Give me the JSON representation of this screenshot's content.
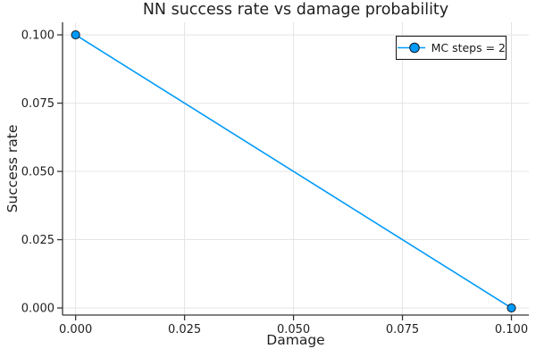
{
  "chart_data": {
    "type": "line",
    "title": "NN success rate vs damage probability",
    "xlabel": "Damage",
    "ylabel": "Success rate",
    "series": [
      {
        "name": "MC steps = 2",
        "x": [
          0.0,
          0.1
        ],
        "y": [
          0.1,
          0.0
        ],
        "color": "#009af9",
        "marker": "circle"
      }
    ],
    "xlim": [
      -0.003,
      0.104
    ],
    "ylim": [
      -0.0026,
      0.1046
    ],
    "xticks": {
      "values": [
        0.0,
        0.025,
        0.05,
        0.075,
        0.1
      ],
      "labels": [
        "0.000",
        "0.025",
        "0.050",
        "0.075",
        "0.100"
      ]
    },
    "yticks": {
      "values": [
        0.0,
        0.025,
        0.05,
        0.075,
        0.1
      ],
      "labels": [
        "0.000",
        "0.025",
        "0.050",
        "0.075",
        "0.100"
      ]
    },
    "grid": true,
    "legend": {
      "position": "top-right",
      "entries": [
        "MC steps = 2"
      ]
    },
    "colors": {
      "series": "#009af9",
      "marker_stroke": "#101820",
      "grid": "#e4e4e7",
      "axis": "#36363a",
      "text": "#1f1f1f",
      "legend_border": "#111111",
      "background": "#ffffff"
    }
  }
}
